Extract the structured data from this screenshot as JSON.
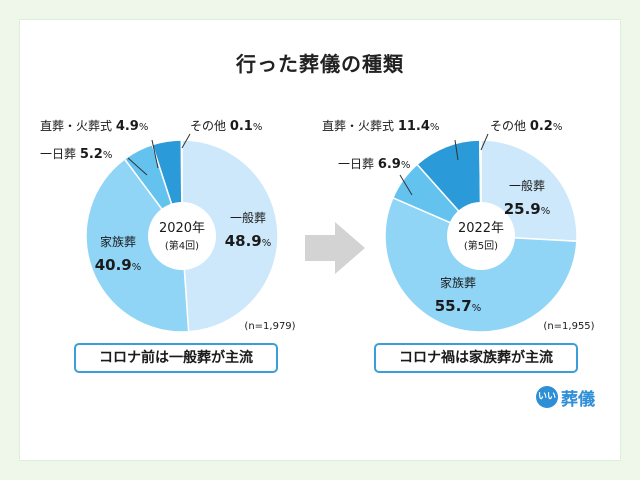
{
  "title": "行った葬儀の種類",
  "colors": {
    "general": "#cde8fa",
    "family": "#90d4f6",
    "oneday": "#63c3ee",
    "direct": "#2a9ad8",
    "other": "#1e88cf",
    "arrow": "#d3d3d3",
    "caption_border": "#3a9fd8",
    "brand": "#2f8fd6"
  },
  "captions": {
    "left": "コロナ前は一般葬が主流",
    "right": "コロナ禍は家族葬が主流"
  },
  "brand": {
    "badge": "いい",
    "text": "葬儀"
  },
  "chart_data": [
    {
      "type": "pie",
      "center_year": "2020年",
      "center_sub": "(第4回)",
      "n_label": "(n=1,979)",
      "slices": [
        {
          "name": "一般葬",
          "value": 48.9,
          "label": "48.9",
          "color_key": "general"
        },
        {
          "name": "家族葬",
          "value": 40.9,
          "label": "40.9",
          "color_key": "family"
        },
        {
          "name": "一日葬",
          "value": 5.2,
          "label": "5.2",
          "color_key": "oneday"
        },
        {
          "name": "直葬・火葬式",
          "value": 4.9,
          "label": "4.9",
          "color_key": "direct"
        },
        {
          "name": "その他",
          "value": 0.1,
          "label": "0.1",
          "color_key": "other"
        }
      ],
      "unit": "%"
    },
    {
      "type": "pie",
      "center_year": "2022年",
      "center_sub": "(第5回)",
      "n_label": "(n=1,955)",
      "slices": [
        {
          "name": "一般葬",
          "value": 25.9,
          "label": "25.9",
          "color_key": "general"
        },
        {
          "name": "家族葬",
          "value": 55.7,
          "label": "55.7",
          "color_key": "family"
        },
        {
          "name": "一日葬",
          "value": 6.9,
          "label": "6.9",
          "color_key": "oneday"
        },
        {
          "name": "直葬・火葬式",
          "value": 11.4,
          "label": "11.4",
          "color_key": "direct"
        },
        {
          "name": "その他",
          "value": 0.2,
          "label": "0.2",
          "color_key": "other"
        }
      ],
      "unit": "%"
    }
  ]
}
